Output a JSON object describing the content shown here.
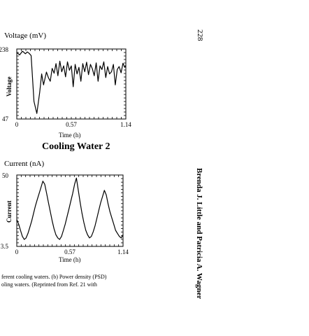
{
  "page_number": "228",
  "running_head": "Brenda J. Little and Patricia A. Wagner",
  "section_title": "Cooling Water 2",
  "caption_lines": [
    "ferent cooling waters. (b) Power density (PSD)",
    "oling waters. (Reprinted from Ref. 21 with"
  ],
  "chart_data": [
    {
      "type": "line",
      "panel_title": "Voltage (mV)",
      "ylabel": "Voltage",
      "xlabel": "Time (h)",
      "ytick_labels": [
        "238",
        "47"
      ],
      "xtick_labels": [
        "0",
        "0.57",
        "1.14"
      ],
      "x": [
        0,
        0.03,
        0.06,
        0.09,
        0.11,
        0.13,
        0.15,
        0.16,
        0.18,
        0.21,
        0.24,
        0.26,
        0.28,
        0.31,
        0.33,
        0.35,
        0.37,
        0.39,
        0.41,
        0.43,
        0.45,
        0.47,
        0.49,
        0.51,
        0.53,
        0.55,
        0.57,
        0.59,
        0.61,
        0.63,
        0.65,
        0.67,
        0.69,
        0.71,
        0.73,
        0.75,
        0.77,
        0.79,
        0.81,
        0.83,
        0.85,
        0.87,
        0.89,
        0.91,
        0.93,
        0.95,
        0.97,
        0.99,
        1.01,
        1.03,
        1.05,
        1.07,
        1.09,
        1.11,
        1.13,
        1.14
      ],
      "y": [
        228,
        222,
        232,
        225,
        230,
        226,
        220,
        178,
        95,
        62,
        120,
        170,
        140,
        175,
        160,
        150,
        185,
        172,
        198,
        165,
        205,
        176,
        192,
        162,
        203,
        180,
        192,
        135,
        196,
        170,
        188,
        150,
        198,
        176,
        202,
        168,
        196,
        184,
        165,
        200,
        150,
        192,
        182,
        203,
        160,
        190,
        170,
        176,
        196,
        140,
        182,
        190,
        173,
        199,
        188,
        194
      ],
      "xlim": [
        0,
        1.14
      ],
      "ylim": [
        47,
        238
      ]
    },
    {
      "type": "line",
      "panel_title": "Current (nA)",
      "ylabel": "Current",
      "xlabel": "Time (h)",
      "ytick_labels": [
        "50",
        "3.5"
      ],
      "xtick_labels": [
        "0",
        "0.57",
        "1.14"
      ],
      "x": [
        0,
        0.02,
        0.04,
        0.06,
        0.08,
        0.1,
        0.12,
        0.14,
        0.16,
        0.18,
        0.2,
        0.22,
        0.24,
        0.26,
        0.28,
        0.3,
        0.32,
        0.34,
        0.36,
        0.38,
        0.4,
        0.42,
        0.44,
        0.46,
        0.48,
        0.5,
        0.52,
        0.54,
        0.56,
        0.58,
        0.6,
        0.62,
        0.64,
        0.66,
        0.68,
        0.7,
        0.72,
        0.74,
        0.76,
        0.78,
        0.8,
        0.82,
        0.84,
        0.86,
        0.88,
        0.9,
        0.92,
        0.94,
        0.96,
        0.98,
        1.0,
        1.02,
        1.04,
        1.06,
        1.08,
        1.1,
        1.12,
        1.14
      ],
      "y": [
        21,
        18,
        14,
        10,
        8,
        9,
        12,
        16,
        20,
        25,
        30,
        34,
        38,
        42,
        46,
        44,
        38,
        32,
        26,
        20,
        15,
        11,
        9,
        8,
        10,
        14,
        18,
        23,
        28,
        33,
        38,
        44,
        48,
        40,
        32,
        25,
        19,
        14,
        11,
        9,
        10,
        13,
        17,
        22,
        27,
        32,
        36,
        40,
        37,
        31,
        26,
        22,
        18,
        14,
        12,
        10,
        9,
        11
      ],
      "xlim": [
        0,
        1.14
      ],
      "ylim": [
        3.5,
        50
      ]
    }
  ]
}
